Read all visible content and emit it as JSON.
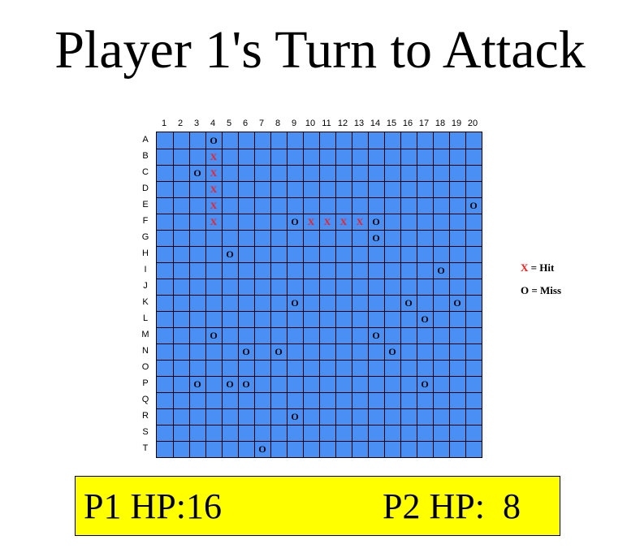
{
  "title": "Player 1's Turn to Attack",
  "grid": {
    "columns": [
      "1",
      "2",
      "3",
      "4",
      "5",
      "6",
      "7",
      "8",
      "9",
      "10",
      "11",
      "12",
      "13",
      "14",
      "15",
      "16",
      "17",
      "18",
      "19",
      "20"
    ],
    "rows": [
      "A",
      "B",
      "C",
      "D",
      "E",
      "F",
      "G",
      "H",
      "I",
      "J",
      "K",
      "L",
      "M",
      "N",
      "O",
      "P",
      "Q",
      "R",
      "S",
      "T"
    ],
    "cell_color": "#4a90f4",
    "marks": [
      {
        "row": "A",
        "col": 4,
        "type": "miss",
        "symbol": "O"
      },
      {
        "row": "B",
        "col": 4,
        "type": "hit",
        "symbol": "X"
      },
      {
        "row": "C",
        "col": 3,
        "type": "miss",
        "symbol": "O"
      },
      {
        "row": "C",
        "col": 4,
        "type": "hit",
        "symbol": "X"
      },
      {
        "row": "D",
        "col": 4,
        "type": "hit",
        "symbol": "X"
      },
      {
        "row": "E",
        "col": 4,
        "type": "hit",
        "symbol": "X"
      },
      {
        "row": "E",
        "col": 20,
        "type": "miss",
        "symbol": "O"
      },
      {
        "row": "F",
        "col": 4,
        "type": "hit",
        "symbol": "X"
      },
      {
        "row": "F",
        "col": 9,
        "type": "miss",
        "symbol": "O"
      },
      {
        "row": "F",
        "col": 10,
        "type": "hit",
        "symbol": "X"
      },
      {
        "row": "F",
        "col": 11,
        "type": "hit",
        "symbol": "X"
      },
      {
        "row": "F",
        "col": 12,
        "type": "hit",
        "symbol": "X"
      },
      {
        "row": "F",
        "col": 13,
        "type": "hit",
        "symbol": "X"
      },
      {
        "row": "F",
        "col": 14,
        "type": "miss",
        "symbol": "O"
      },
      {
        "row": "G",
        "col": 14,
        "type": "miss",
        "symbol": "O"
      },
      {
        "row": "H",
        "col": 5,
        "type": "miss",
        "symbol": "O"
      },
      {
        "row": "I",
        "col": 18,
        "type": "miss",
        "symbol": "O"
      },
      {
        "row": "K",
        "col": 9,
        "type": "miss",
        "symbol": "O"
      },
      {
        "row": "K",
        "col": 16,
        "type": "miss",
        "symbol": "O"
      },
      {
        "row": "K",
        "col": 19,
        "type": "miss",
        "symbol": "O"
      },
      {
        "row": "L",
        "col": 17,
        "type": "miss",
        "symbol": "O"
      },
      {
        "row": "M",
        "col": 4,
        "type": "miss",
        "symbol": "O"
      },
      {
        "row": "M",
        "col": 14,
        "type": "miss",
        "symbol": "O"
      },
      {
        "row": "N",
        "col": 6,
        "type": "miss",
        "symbol": "O"
      },
      {
        "row": "N",
        "col": 8,
        "type": "miss",
        "symbol": "O"
      },
      {
        "row": "N",
        "col": 15,
        "type": "miss",
        "symbol": "O"
      },
      {
        "row": "P",
        "col": 3,
        "type": "miss",
        "symbol": "O"
      },
      {
        "row": "P",
        "col": 5,
        "type": "miss",
        "symbol": "O"
      },
      {
        "row": "P",
        "col": 6,
        "type": "miss",
        "symbol": "O"
      },
      {
        "row": "P",
        "col": 17,
        "type": "miss",
        "symbol": "O"
      },
      {
        "row": "R",
        "col": 9,
        "type": "miss",
        "symbol": "O"
      },
      {
        "row": "T",
        "col": 7,
        "type": "miss",
        "symbol": "O"
      }
    ]
  },
  "legend": {
    "hit_symbol": "X",
    "hit_label": " = Hit",
    "miss_symbol": "O",
    "miss_label": " = Miss",
    "hit_color": "#ff1a1a",
    "miss_color": "#000000"
  },
  "status": {
    "p1_hp": "P1 HP:16",
    "p2_hp": "P2 HP:  8",
    "panel_color": "#ffff00"
  }
}
